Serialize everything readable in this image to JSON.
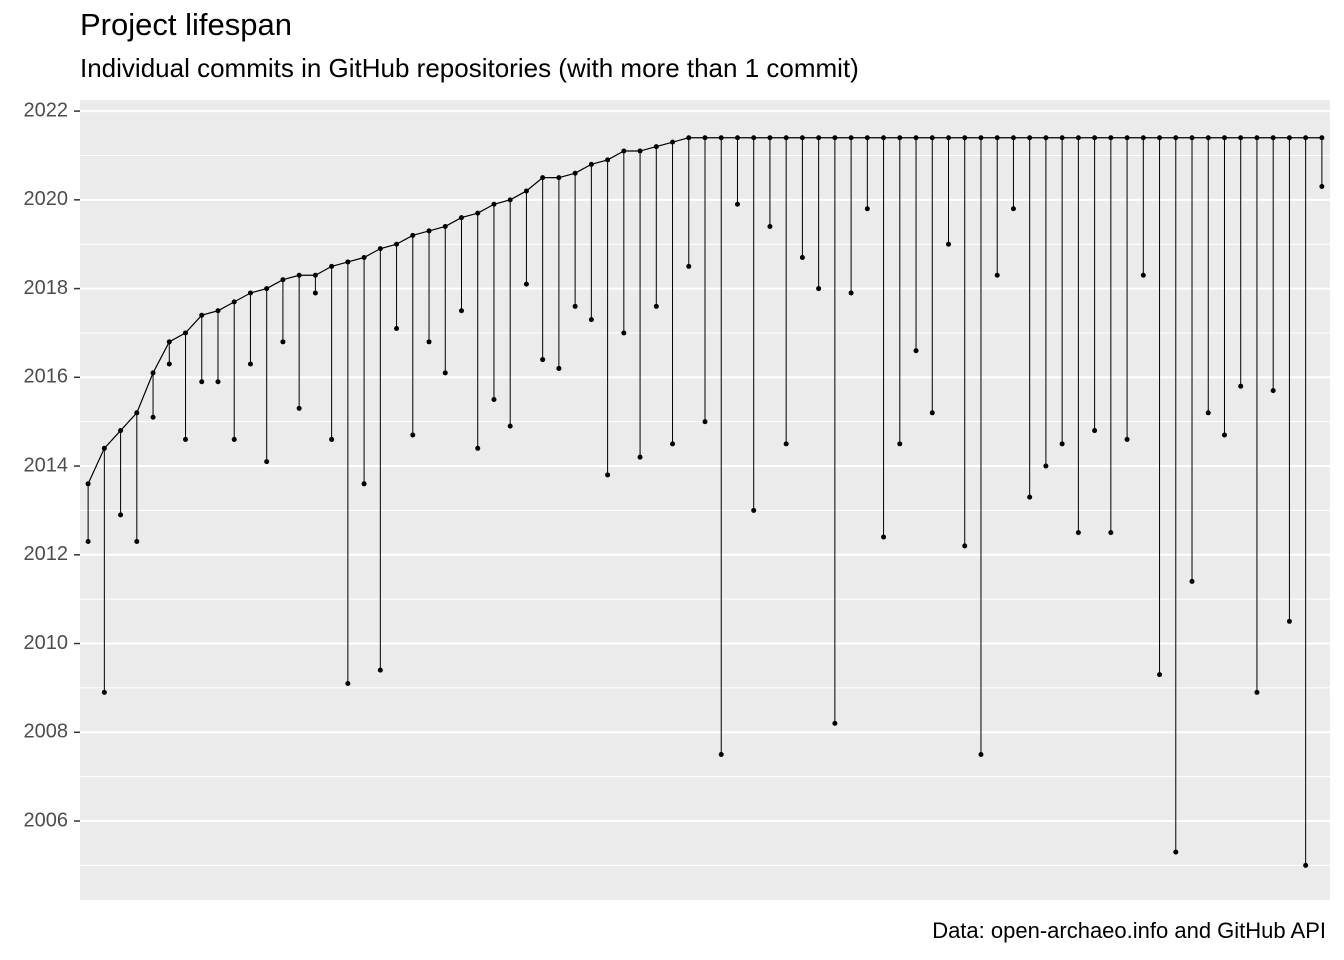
{
  "chart_data": {
    "type": "lifespan",
    "title": "Project lifespan",
    "subtitle": "Individual commits in GitHub repositories (with more than 1 commit)",
    "caption": "Data: open-archaeo.info and GitHub API",
    "low": [
      2012.3,
      2008.9,
      2012.9,
      2012.3,
      2015.1,
      2016.3,
      2014.6,
      2015.9,
      2015.9,
      2014.6,
      2016.3,
      2014.1,
      2016.8,
      2015.3,
      2017.9,
      2014.6,
      2009.1,
      2013.6,
      2009.4,
      2017.1,
      2014.7,
      2016.8,
      2016.1,
      2017.5,
      2014.4,
      2015.5,
      2014.9,
      2018.1,
      2016.4,
      2016.2,
      2017.6,
      2017.3,
      2013.8,
      2017.0,
      2014.2,
      2017.6,
      2014.5,
      2018.5,
      2015.0,
      2007.5,
      2019.9,
      2013.0,
      2019.4,
      2014.5,
      2018.7,
      2018.0,
      2008.2,
      2017.9,
      2019.8,
      2012.4,
      2014.5,
      2016.6,
      2015.2,
      2019.0,
      2012.2,
      2007.5,
      2018.3,
      2019.8,
      2013.3,
      2014.0,
      2014.5,
      2012.5,
      2014.8,
      2012.5,
      2014.6,
      2018.3,
      2009.3,
      2005.3,
      2011.4,
      2015.2,
      2014.7,
      2015.8,
      2008.9,
      2015.7,
      2010.5,
      2005.0,
      2020.3
    ],
    "high": [
      2013.6,
      2014.4,
      2014.8,
      2015.2,
      2016.1,
      2016.8,
      2017.0,
      2017.4,
      2017.5,
      2017.7,
      2017.9,
      2018.0,
      2018.2,
      2018.3,
      2018.3,
      2018.5,
      2018.6,
      2018.7,
      2018.9,
      2019.0,
      2019.2,
      2019.3,
      2019.4,
      2019.6,
      2019.7,
      2019.9,
      2020.0,
      2020.2,
      2020.5,
      2020.5,
      2020.6,
      2020.8,
      2020.9,
      2021.1,
      2021.1,
      2021.2,
      2021.3,
      2021.4,
      2021.4,
      2021.4,
      2021.4,
      2021.4,
      2021.4,
      2021.4,
      2021.4,
      2021.4,
      2021.4,
      2021.4,
      2021.4,
      2021.4,
      2021.4,
      2021.4,
      2021.4,
      2021.4,
      2021.4,
      2021.4,
      2021.4,
      2021.4,
      2021.4,
      2021.4,
      2021.4,
      2021.4,
      2021.4,
      2021.4,
      2021.4,
      2021.4,
      2021.4,
      2021.4,
      2021.4,
      2021.4,
      2021.4,
      2021.4,
      2021.4,
      2021.4,
      2021.4,
      2021.4,
      2021.4
    ],
    "color": "#000000",
    "ylim": [
      2004.22,
      2022.25
    ],
    "yticks": [
      2006,
      2008,
      2010,
      2012,
      2014,
      2016,
      2018,
      2020,
      2022
    ],
    "minor_yticks": [
      2005,
      2007,
      2009,
      2011,
      2013,
      2015,
      2017,
      2019,
      2021
    ],
    "grid": true
  }
}
